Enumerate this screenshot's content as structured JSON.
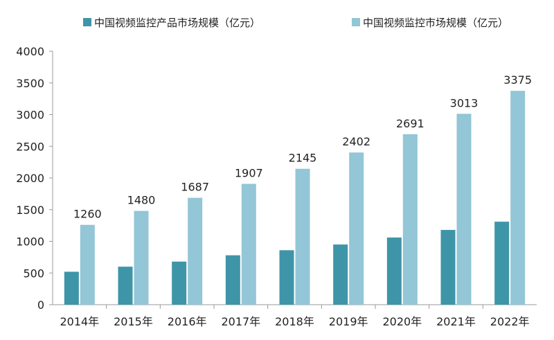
{
  "colors": {
    "series1": "#3f95a8",
    "series2": "#93c6d6",
    "axis": "#9a9a9a"
  },
  "chart_data": {
    "type": "bar",
    "title": "",
    "xlabel": "",
    "ylabel": "",
    "ylim": [
      0,
      4000
    ],
    "yticks": [
      0,
      500,
      1000,
      1500,
      2000,
      2500,
      3000,
      3500,
      4000
    ],
    "grid": false,
    "legend_position": "top",
    "categories": [
      "2014年",
      "2015年",
      "2016年",
      "2017年",
      "2018年",
      "2019年",
      "2020年",
      "2021年",
      "2022年"
    ],
    "series": [
      {
        "name": "中国视频监控产品市场规模（亿元）",
        "values": [
          520,
          600,
          680,
          780,
          860,
          950,
          1060,
          1180,
          1310
        ],
        "show_labels": false
      },
      {
        "name": "中国视频监控市场规模（亿元）",
        "values": [
          1260,
          1480,
          1687,
          1907,
          2145,
          2402,
          2691,
          3013,
          3375
        ],
        "show_labels": true
      }
    ]
  }
}
